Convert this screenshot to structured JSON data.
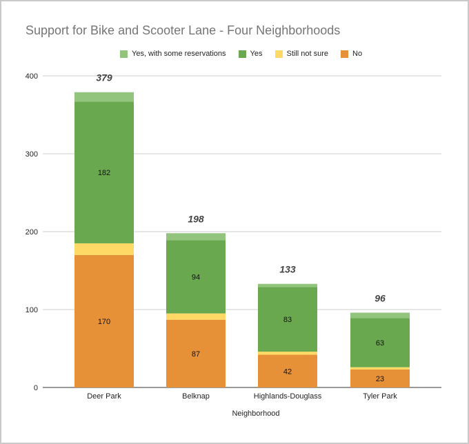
{
  "chart_data": {
    "type": "bar",
    "stacked": true,
    "title": "Support for Bike and Scooter Lane - Four Neighborhoods",
    "xlabel": "Neighborhood",
    "ylabel": "",
    "ylim": [
      0,
      400
    ],
    "yticks": [
      0,
      100,
      200,
      300,
      400
    ],
    "grid": true,
    "legend_position": "top",
    "categories": [
      "Deer Park",
      "Belknap",
      "Highlands-Douglass",
      "Tyler Park"
    ],
    "series": [
      {
        "name": "No",
        "color": "#e69138",
        "values": [
          170,
          87,
          42,
          23
        ],
        "labels": [
          "170",
          "87",
          "42",
          "23"
        ]
      },
      {
        "name": "Still not sure",
        "color": "#ffd966",
        "values": [
          15,
          8,
          4,
          3
        ],
        "labels": [
          "",
          "",
          "",
          ""
        ]
      },
      {
        "name": "Yes",
        "color": "#6aa84f",
        "values": [
          182,
          94,
          83,
          63
        ],
        "labels": [
          "182",
          "94",
          "83",
          "63"
        ]
      },
      {
        "name": "Yes, with some reservations",
        "color": "#93c47d",
        "values": [
          12,
          9,
          4,
          7
        ],
        "labels": [
          "",
          "",
          "",
          ""
        ]
      }
    ],
    "totals": [
      "379",
      "198",
      "133",
      "96"
    ],
    "legend_order": [
      "Yes, with some reservations",
      "Yes",
      "Still not sure",
      "No"
    ]
  }
}
